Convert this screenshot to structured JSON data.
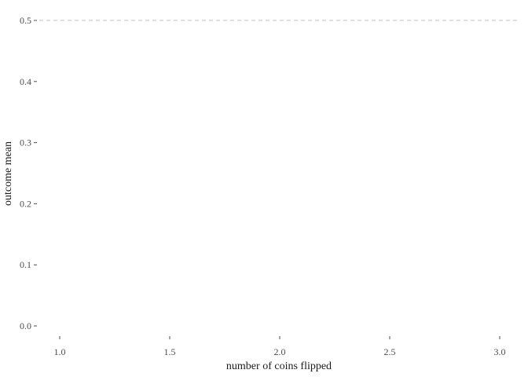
{
  "chart_data": {
    "type": "line",
    "title": "",
    "xlabel": "number of coins flipped",
    "ylabel": "outcome mean",
    "xlim": [
      1.0,
      3.0
    ],
    "ylim": [
      0.0,
      0.5
    ],
    "x_ticks": [
      1.0,
      1.5,
      2.0,
      2.5,
      3.0
    ],
    "x_tick_labels": [
      "1.0",
      "1.5",
      "2.0",
      "2.5",
      "3.0"
    ],
    "y_ticks": [
      0.0,
      0.1,
      0.2,
      0.3,
      0.4,
      0.5
    ],
    "y_tick_labels": [
      "0.0",
      "0.1",
      "0.2",
      "0.3",
      "0.4",
      "0.5"
    ],
    "series": [],
    "reference_lines": [
      {
        "orientation": "horizontal",
        "y": 0.5,
        "style": "dashed",
        "color": "#c0c0c0"
      }
    ],
    "grid": false,
    "legend": "none"
  }
}
